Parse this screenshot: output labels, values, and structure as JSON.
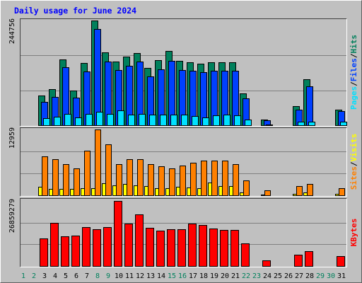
{
  "legend_separator": "/",
  "chart_data": [
    {
      "type": "bar",
      "title": "Daily usage for June 2024",
      "ylim": [
        0,
        244756
      ],
      "yticks": [
        244756
      ],
      "grid": true,
      "series": [
        {
          "name": "Hits",
          "color": "#00805c",
          "values": [
            0,
            0,
            69470,
            84350,
            153820,
            81050,
            145550,
            244756,
            170360,
            148860,
            160440,
            168710,
            133970,
            152170,
            173670,
            150510,
            147210,
            143900,
            146800,
            147500,
            147100,
            74430,
            0,
            13230,
            0,
            0,
            44660,
            107510,
            0,
            0,
            36390
          ]
        },
        {
          "name": "Files",
          "color": "#0040ff",
          "values": [
            0,
            0,
            54580,
            66160,
            135630,
            64510,
            125700,
            224940,
            148860,
            129010,
            138940,
            148300,
            114130,
            130670,
            150510,
            128500,
            127360,
            124050,
            127000,
            127700,
            127400,
            62850,
            0,
            11580,
            0,
            0,
            36390,
            90970,
            0,
            0,
            33080
          ]
        },
        {
          "name": "Pages",
          "color": "#00e0ff",
          "values": [
            0,
            0,
            16540,
            19850,
            26460,
            18190,
            26100,
            31430,
            26800,
            34730,
            24810,
            26200,
            24600,
            24900,
            24700,
            24500,
            21500,
            18190,
            23160,
            24810,
            23400,
            13230,
            0,
            1650,
            0,
            0,
            8270,
            8400,
            0,
            0,
            8100
          ]
        }
      ]
    },
    {
      "type": "bar",
      "ylim": [
        0,
        12959
      ],
      "yticks": [
        12959
      ],
      "grid": true,
      "series": [
        {
          "name": "Visits",
          "color": "#ffff00",
          "values": [
            0,
            0,
            1672,
            1254,
            1250,
            1260,
            1393,
            1400,
            2368,
            1950,
            2229,
            1940,
            1811,
            1390,
            1395,
            1670,
            1532,
            1380,
            2507,
            1810,
            1815,
            557,
            0,
            139,
            0,
            0,
            279,
            560,
            0,
            0,
            280
          ]
        },
        {
          "name": "Sites",
          "color": "#ff8000",
          "values": [
            0,
            0,
            7662,
            7104,
            6129,
            5293,
            8776,
            12959,
            10030,
            6150,
            7090,
            7120,
            6110,
            5711,
            5300,
            5851,
            6408,
            6826,
            6830,
            6810,
            6129,
            2925,
            0,
            975,
            0,
            0,
            1811,
            2229,
            0,
            0,
            1393
          ]
        }
      ]
    },
    {
      "type": "bar",
      "ylim": [
        0,
        26859279
      ],
      "yticks": [
        26859279
      ],
      "grid": true,
      "categories": [
        "1",
        "2",
        "3",
        "4",
        "5",
        "6",
        "7",
        "8",
        "9",
        "10",
        "11",
        "12",
        "13",
        "14",
        "15",
        "16",
        "17",
        "18",
        "19",
        "20",
        "21",
        "22",
        "23",
        "24",
        "25",
        "26",
        "27",
        "28",
        "29",
        "30",
        "31"
      ],
      "category_colors": [
        "#00805c",
        "#00805c",
        "#000000",
        "#000000",
        "#000000",
        "#000000",
        "#000000",
        "#00805c",
        "#00805c",
        "#000000",
        "#000000",
        "#000000",
        "#000000",
        "#000000",
        "#00805c",
        "#00805c",
        "#000000",
        "#000000",
        "#000000",
        "#000000",
        "#000000",
        "#00805c",
        "#00805c",
        "#000000",
        "#000000",
        "#000000",
        "#000000",
        "#000000",
        "#00805c",
        "#00805c",
        "#000000"
      ],
      "series": [
        {
          "name": "KBytes",
          "color": "#ff0000",
          "values": [
            0,
            0,
            11386010,
            17808890,
            12261860,
            12553810,
            16057200,
            15181350,
            16100000,
            26859279,
            17516940,
            21312280,
            15765250,
            14597450,
            15200000,
            15150000,
            17520000,
            16933040,
            15473300,
            14889400,
            14900000,
            9342370,
            0,
            2335590,
            0,
            0,
            4671180,
            6130930,
            0,
            0,
            4087290
          ]
        }
      ]
    }
  ]
}
